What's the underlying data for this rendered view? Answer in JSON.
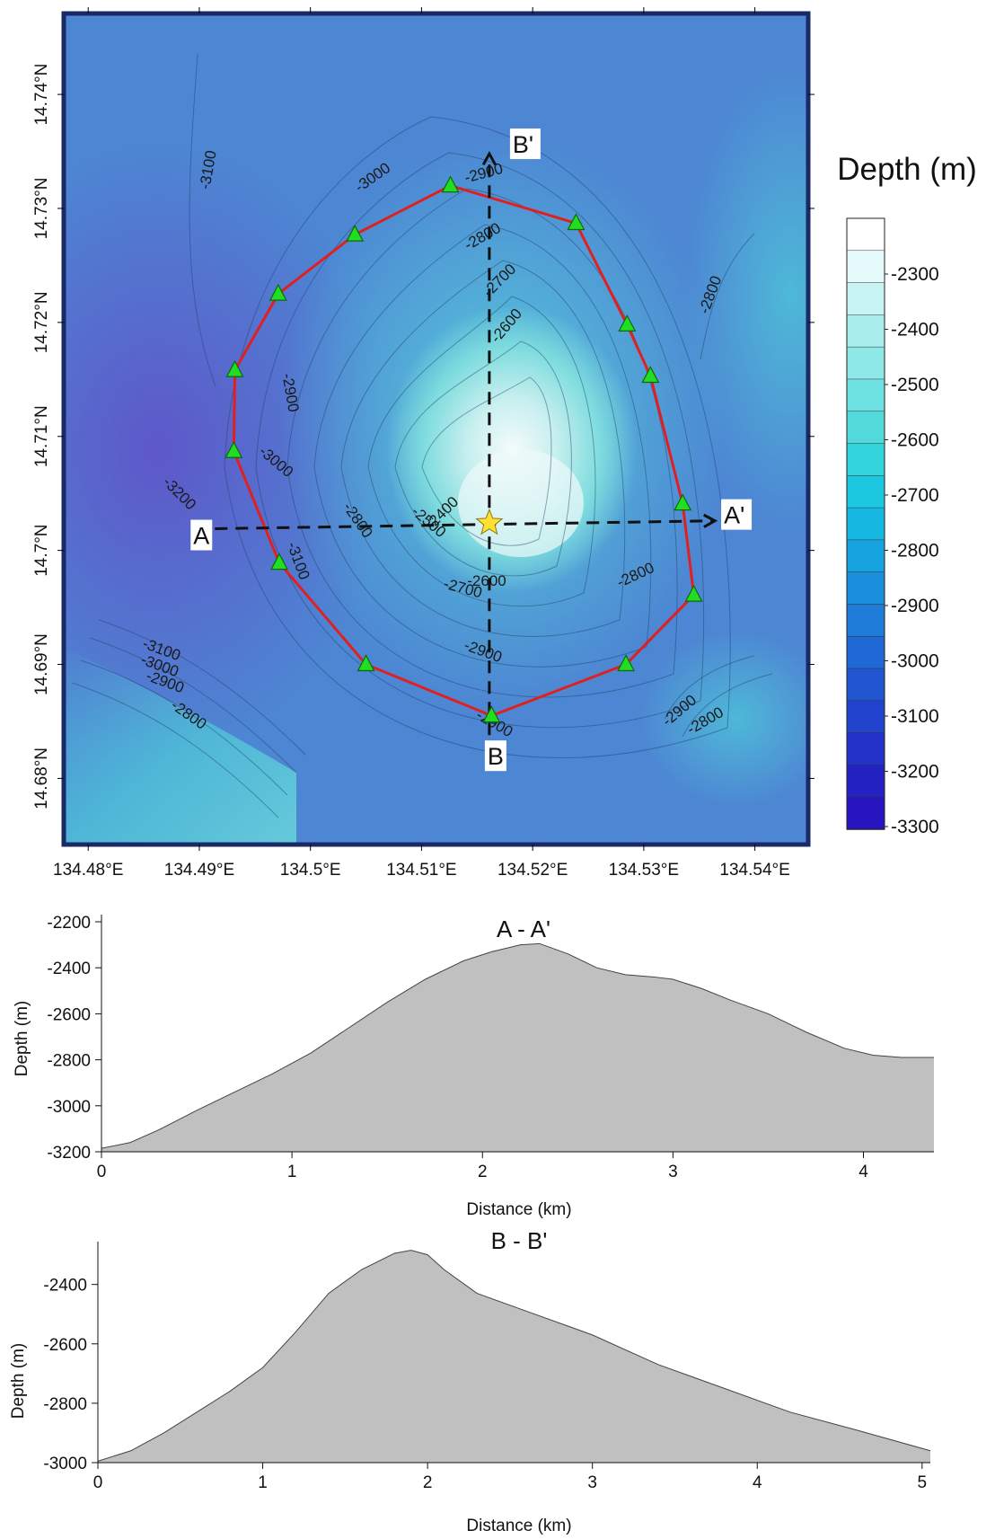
{
  "map": {
    "x_ticks": [
      "134.48°E",
      "134.49°E",
      "134.5°E",
      "134.51°E",
      "134.52°E",
      "134.53°E",
      "134.54°E"
    ],
    "y_ticks": [
      "14.74°N",
      "14.73°N",
      "14.72°N",
      "14.71°N",
      "14.7°N",
      "14.69°N",
      "14.68°N"
    ],
    "x_tick_values": [
      134.48,
      134.49,
      134.5,
      134.51,
      134.52,
      134.53,
      134.54
    ],
    "y_tick_values": [
      14.74,
      14.73,
      14.72,
      14.71,
      14.7,
      14.69,
      14.68
    ],
    "lon_range": [
      134.4778,
      134.5448
    ],
    "lat_range": [
      14.6742,
      14.7471
    ],
    "section_AA": {
      "start_label": "A",
      "end_label": "A'",
      "start": [
        134.4914,
        14.7019
      ],
      "end": [
        134.5364,
        14.7026
      ]
    },
    "section_BB": {
      "start_label": "B",
      "end_label": "B'",
      "start": [
        134.5161,
        14.6838
      ],
      "end": [
        134.5161,
        14.7348
      ]
    },
    "stations": [
      [
        134.5126,
        14.732
      ],
      [
        134.5239,
        14.7287
      ],
      [
        134.5285,
        14.7198
      ],
      [
        134.5306,
        14.7153
      ],
      [
        134.5335,
        14.7041
      ],
      [
        134.5345,
        14.6961
      ],
      [
        134.5284,
        14.69
      ],
      [
        134.5163,
        14.6855
      ],
      [
        134.505,
        14.69
      ],
      [
        134.4972,
        14.6989
      ],
      [
        134.4931,
        14.7087
      ],
      [
        134.4932,
        14.7158
      ],
      [
        134.4971,
        14.7225
      ],
      [
        134.504,
        14.7277
      ]
    ],
    "epicenter": [
      134.5161,
      14.7024
    ],
    "contour_labels": [
      "-3100",
      "-3000",
      "-2900",
      "-2800",
      "-2700",
      "-2600",
      "-2900",
      "-3000",
      "-3200",
      "-2800",
      "-2400",
      "-2500",
      "-3100",
      "-2600",
      "-2700",
      "-2800",
      "-2900",
      "-3100",
      "-3000",
      "-2900",
      "-2800",
      "-2900",
      "-2800",
      "-2800",
      "-2900"
    ],
    "colors": {
      "station_fill": "#22dd22",
      "station_stroke": "#0a6a0a",
      "boundary": "#e02020",
      "epicenter_fill": "#ffe033",
      "section_line": "#111111"
    }
  },
  "colorbar": {
    "title": "Depth (m)",
    "labels": [
      "-2300",
      "-2400",
      "-2500",
      "-2600",
      "-2700",
      "-2800",
      "-2900",
      "-3000",
      "-3100",
      "-3200",
      "-3300"
    ],
    "colors": [
      "#ffffff",
      "#e5fbfb",
      "#c9f4f4",
      "#aaeeee",
      "#8ee8e8",
      "#6ee2e2",
      "#52dada",
      "#33d4dc",
      "#1cc8df",
      "#17b8e2",
      "#16a3df",
      "#1b8fdc",
      "#1f7cd9",
      "#2068d5",
      "#2155d1",
      "#2243cd",
      "#2332c8",
      "#2522c4",
      "#2614be"
    ]
  },
  "chart_data": [
    {
      "type": "area",
      "title": "A - A'",
      "xlabel": "Distance (km)",
      "ylabel": "Depth (m)",
      "xlim": [
        0,
        4.37
      ],
      "ylim": [
        -3200,
        -2200
      ],
      "x_ticks": [
        0,
        1,
        2,
        3,
        4
      ],
      "y_ticks": [
        -2200,
        -2400,
        -2600,
        -2800,
        -3000,
        -3200
      ],
      "fill": "#c0c0c0",
      "x": [
        0,
        0.15,
        0.3,
        0.5,
        0.7,
        0.9,
        1.1,
        1.3,
        1.5,
        1.7,
        1.9,
        2.05,
        2.2,
        2.3,
        2.45,
        2.6,
        2.75,
        2.9,
        3.0,
        3.15,
        3.3,
        3.5,
        3.7,
        3.9,
        4.05,
        4.2,
        4.37
      ],
      "y": [
        -3185,
        -3160,
        -3105,
        -3020,
        -2940,
        -2860,
        -2770,
        -2660,
        -2550,
        -2450,
        -2370,
        -2330,
        -2300,
        -2295,
        -2340,
        -2400,
        -2430,
        -2440,
        -2450,
        -2490,
        -2540,
        -2600,
        -2680,
        -2750,
        -2780,
        -2790,
        -2790
      ]
    },
    {
      "type": "area",
      "title": "B - B'",
      "xlabel": "Distance (km)",
      "ylabel": "Depth (m)",
      "xlim": [
        0,
        5.05
      ],
      "ylim": [
        -3000,
        -2280
      ],
      "x_ticks": [
        0,
        1,
        2,
        3,
        4,
        5
      ],
      "y_ticks": [
        -2400,
        -2600,
        -2800,
        -3000
      ],
      "fill": "#c0c0c0",
      "x": [
        0,
        0.2,
        0.4,
        0.6,
        0.8,
        1.0,
        1.2,
        1.4,
        1.6,
        1.8,
        1.9,
        2.0,
        2.1,
        2.3,
        2.6,
        3.0,
        3.4,
        3.8,
        4.2,
        4.6,
        5.05
      ],
      "y": [
        -2995,
        -2960,
        -2900,
        -2830,
        -2760,
        -2680,
        -2560,
        -2430,
        -2350,
        -2295,
        -2285,
        -2300,
        -2350,
        -2430,
        -2490,
        -2570,
        -2670,
        -2750,
        -2830,
        -2890,
        -2960
      ]
    }
  ]
}
